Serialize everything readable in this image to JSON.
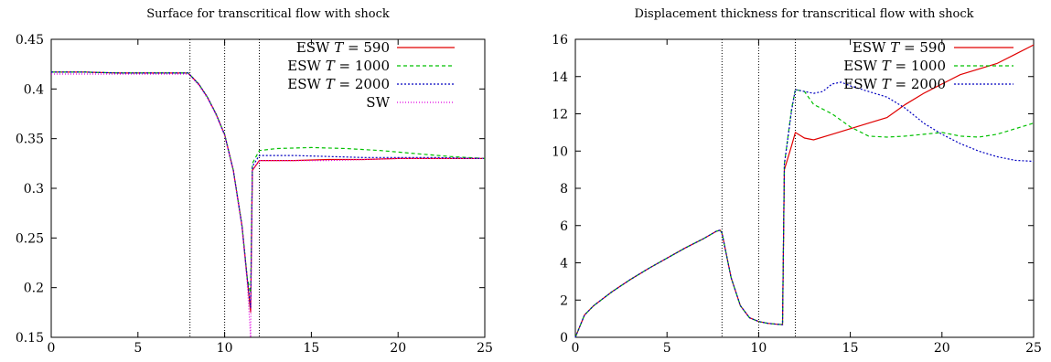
{
  "chart_data": [
    {
      "type": "line",
      "title": "Surface for transcritical flow with shock",
      "xlabel": "",
      "ylabel": "",
      "xlim": [
        0,
        25
      ],
      "ylim": [
        0.15,
        0.45
      ],
      "xticks": [
        "0",
        "5",
        "10",
        "15",
        "20",
        "25"
      ],
      "yticks": [
        "0.15",
        "0.2",
        "0.25",
        "0.3",
        "0.35",
        "0.4",
        "0.45"
      ],
      "grid": false,
      "legend_position": "top-right",
      "vertical_lines": [
        8,
        10,
        12
      ],
      "series": [
        {
          "name": "ESW T = 590",
          "legend_prefix": "ESW ",
          "legend_var": "T",
          "legend_suffix": " = 590",
          "color": "#e00000",
          "dash": "",
          "points": [
            [
              0,
              0.417
            ],
            [
              2,
              0.417
            ],
            [
              4,
              0.416
            ],
            [
              6,
              0.416
            ],
            [
              7.9,
              0.416
            ],
            [
              8.5,
              0.405
            ],
            [
              9,
              0.392
            ],
            [
              9.5,
              0.375
            ],
            [
              10,
              0.354
            ],
            [
              10.5,
              0.318
            ],
            [
              11,
              0.262
            ],
            [
              11.3,
              0.21
            ],
            [
              11.5,
              0.175
            ],
            [
              11.6,
              0.318
            ],
            [
              12,
              0.328
            ],
            [
              14,
              0.328
            ],
            [
              16,
              0.329
            ],
            [
              18,
              0.329
            ],
            [
              20,
              0.33
            ],
            [
              22,
              0.33
            ],
            [
              25,
              0.33
            ]
          ]
        },
        {
          "name": "ESW T = 1000",
          "legend_prefix": "ESW ",
          "legend_var": "T",
          "legend_suffix": " = 1000",
          "color": "#00c000",
          "dash": "4,3",
          "points": [
            [
              0,
              0.417
            ],
            [
              2,
              0.417
            ],
            [
              4,
              0.416
            ],
            [
              6,
              0.416
            ],
            [
              7.9,
              0.416
            ],
            [
              8.5,
              0.405
            ],
            [
              9,
              0.392
            ],
            [
              9.5,
              0.375
            ],
            [
              10,
              0.354
            ],
            [
              10.5,
              0.318
            ],
            [
              11,
              0.262
            ],
            [
              11.3,
              0.21
            ],
            [
              11.5,
              0.195
            ],
            [
              11.6,
              0.325
            ],
            [
              12,
              0.338
            ],
            [
              13,
              0.34
            ],
            [
              15,
              0.341
            ],
            [
              17,
              0.34
            ],
            [
              19,
              0.338
            ],
            [
              21,
              0.335
            ],
            [
              23,
              0.332
            ],
            [
              25,
              0.33
            ]
          ]
        },
        {
          "name": "ESW T = 2000",
          "legend_prefix": "ESW ",
          "legend_var": "T",
          "legend_suffix": " = 2000",
          "color": "#0000c0",
          "dash": "2,2",
          "points": [
            [
              0,
              0.417
            ],
            [
              2,
              0.417
            ],
            [
              4,
              0.416
            ],
            [
              6,
              0.416
            ],
            [
              7.9,
              0.416
            ],
            [
              8.5,
              0.405
            ],
            [
              9,
              0.392
            ],
            [
              9.5,
              0.375
            ],
            [
              10,
              0.354
            ],
            [
              10.5,
              0.318
            ],
            [
              11,
              0.262
            ],
            [
              11.3,
              0.21
            ],
            [
              11.5,
              0.18
            ],
            [
              11.6,
              0.322
            ],
            [
              12,
              0.333
            ],
            [
              14,
              0.333
            ],
            [
              16,
              0.332
            ],
            [
              18,
              0.331
            ],
            [
              20,
              0.331
            ],
            [
              22,
              0.331
            ],
            [
              25,
              0.33
            ]
          ]
        },
        {
          "name": "SW",
          "legend_prefix": "SW",
          "legend_var": "",
          "legend_suffix": "",
          "color": "#e000e0",
          "dash": "1,2",
          "points": [
            [
              0,
              0.415
            ],
            [
              2,
              0.415
            ],
            [
              4,
              0.415
            ],
            [
              6,
              0.415
            ],
            [
              7.9,
              0.415
            ],
            [
              8.5,
              0.404
            ],
            [
              9,
              0.391
            ],
            [
              9.5,
              0.374
            ],
            [
              10,
              0.353
            ],
            [
              10.5,
              0.317
            ],
            [
              11,
              0.26
            ],
            [
              11.3,
              0.205
            ],
            [
              11.5,
              0.15
            ],
            [
              11.6,
              0.318
            ],
            [
              12,
              0.328
            ],
            [
              14,
              0.328
            ],
            [
              16,
              0.328
            ],
            [
              18,
              0.329
            ],
            [
              20,
              0.33
            ],
            [
              22,
              0.33
            ],
            [
              25,
              0.33
            ]
          ]
        }
      ]
    },
    {
      "type": "line",
      "title": "Displacement thickness for transcritical flow with shock",
      "xlabel": "",
      "ylabel": "",
      "xlim": [
        0,
        25
      ],
      "ylim": [
        0,
        16
      ],
      "xticks": [
        "0",
        "5",
        "10",
        "15",
        "20",
        "25"
      ],
      "yticks": [
        "0",
        "2",
        "4",
        "6",
        "8",
        "10",
        "12",
        "14",
        "16"
      ],
      "grid": false,
      "legend_position": "top-right",
      "vertical_lines": [
        8,
        10,
        12
      ],
      "series": [
        {
          "name": "ESW T = 590",
          "legend_prefix": "ESW ",
          "legend_var": "T",
          "legend_suffix": " = 590",
          "color": "#e00000",
          "dash": "",
          "points": [
            [
              0,
              0
            ],
            [
              0.5,
              1.2
            ],
            [
              1,
              1.7
            ],
            [
              2,
              2.45
            ],
            [
              3,
              3.1
            ],
            [
              4,
              3.7
            ],
            [
              5,
              4.25
            ],
            [
              6,
              4.8
            ],
            [
              7,
              5.3
            ],
            [
              7.7,
              5.7
            ],
            [
              7.9,
              5.75
            ],
            [
              8,
              5.6
            ],
            [
              8.5,
              3.2
            ],
            [
              9,
              1.7
            ],
            [
              9.5,
              1.05
            ],
            [
              10,
              0.85
            ],
            [
              10.5,
              0.75
            ],
            [
              11,
              0.7
            ],
            [
              11.3,
              0.68
            ],
            [
              11.4,
              9
            ],
            [
              11.8,
              10.3
            ],
            [
              12,
              11
            ],
            [
              12.5,
              10.7
            ],
            [
              13,
              10.6
            ],
            [
              14,
              10.9
            ],
            [
              15,
              11.2
            ],
            [
              16,
              11.5
            ],
            [
              17,
              11.8
            ],
            [
              18,
              12.5
            ],
            [
              19,
              13.1
            ],
            [
              20,
              13.6
            ],
            [
              21,
              14.1
            ],
            [
              22,
              14.4
            ],
            [
              23,
              14.7
            ],
            [
              24,
              15.2
            ],
            [
              25,
              15.7
            ]
          ]
        },
        {
          "name": "ESW T = 1000",
          "legend_prefix": "ESW ",
          "legend_var": "T",
          "legend_suffix": " = 1000",
          "color": "#00c000",
          "dash": "4,3",
          "points": [
            [
              0,
              0
            ],
            [
              0.5,
              1.2
            ],
            [
              1,
              1.7
            ],
            [
              2,
              2.45
            ],
            [
              3,
              3.1
            ],
            [
              4,
              3.7
            ],
            [
              5,
              4.25
            ],
            [
              6,
              4.8
            ],
            [
              7,
              5.3
            ],
            [
              7.7,
              5.7
            ],
            [
              7.9,
              5.75
            ],
            [
              8,
              5.6
            ],
            [
              8.5,
              3.2
            ],
            [
              9,
              1.7
            ],
            [
              9.5,
              1.05
            ],
            [
              10,
              0.85
            ],
            [
              10.5,
              0.75
            ],
            [
              11,
              0.7
            ],
            [
              11.3,
              0.68
            ],
            [
              11.4,
              9.3
            ],
            [
              11.8,
              12.3
            ],
            [
              12,
              13.3
            ],
            [
              12.5,
              13.2
            ],
            [
              13,
              12.5
            ],
            [
              14,
              12
            ],
            [
              15,
              11.3
            ],
            [
              16,
              10.8
            ],
            [
              17,
              10.75
            ],
            [
              18,
              10.8
            ],
            [
              19,
              10.9
            ],
            [
              20,
              11
            ],
            [
              21,
              10.8
            ],
            [
              22,
              10.75
            ],
            [
              23,
              10.9
            ],
            [
              24,
              11.2
            ],
            [
              25,
              11.5
            ]
          ]
        },
        {
          "name": "ESW T = 2000",
          "legend_prefix": "ESW ",
          "legend_var": "T",
          "legend_suffix": " = 2000",
          "color": "#0000c0",
          "dash": "2,2",
          "points": [
            [
              0,
              0
            ],
            [
              0.5,
              1.2
            ],
            [
              1,
              1.7
            ],
            [
              2,
              2.45
            ],
            [
              3,
              3.1
            ],
            [
              4,
              3.7
            ],
            [
              5,
              4.25
            ],
            [
              6,
              4.8
            ],
            [
              7,
              5.3
            ],
            [
              7.7,
              5.7
            ],
            [
              7.9,
              5.75
            ],
            [
              8,
              5.6
            ],
            [
              8.5,
              3.2
            ],
            [
              9,
              1.7
            ],
            [
              9.5,
              1.05
            ],
            [
              10,
              0.85
            ],
            [
              10.5,
              0.75
            ],
            [
              11,
              0.7
            ],
            [
              11.3,
              0.68
            ],
            [
              11.4,
              9.3
            ],
            [
              11.8,
              12.2
            ],
            [
              12,
              13.3
            ],
            [
              12.5,
              13.2
            ],
            [
              13,
              13.1
            ],
            [
              13.5,
              13.2
            ],
            [
              14,
              13.6
            ],
            [
              14.5,
              13.7
            ],
            [
              15,
              13.5
            ],
            [
              16,
              13.2
            ],
            [
              17,
              12.9
            ],
            [
              18,
              12.3
            ],
            [
              19,
              11.5
            ],
            [
              20,
              10.9
            ],
            [
              21,
              10.4
            ],
            [
              22,
              10
            ],
            [
              23,
              9.7
            ],
            [
              24,
              9.5
            ],
            [
              25,
              9.45
            ]
          ]
        }
      ]
    }
  ]
}
